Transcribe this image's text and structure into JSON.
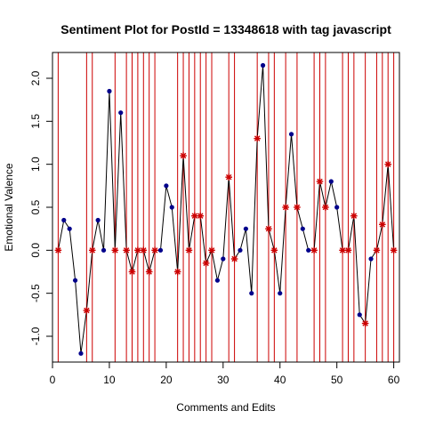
{
  "chart_data": {
    "type": "line",
    "title": "Sentiment Plot for PostId =  13348618  with tag  javascript",
    "xlabel": "Comments and Edits",
    "ylabel": "Emotional Valence",
    "xlim": [
      0,
      61
    ],
    "ylim": [
      -1.3,
      2.3
    ],
    "x_ticks": [
      0,
      10,
      20,
      30,
      40,
      50,
      60
    ],
    "x_tick_labels": [
      "0",
      "10",
      "20",
      "30",
      "40",
      "50",
      "60"
    ],
    "y_ticks": [
      -1.0,
      -0.5,
      0.0,
      0.5,
      1.0,
      1.5,
      2.0
    ],
    "y_tick_labels": [
      "-1.0",
      "-0.5",
      "0.0",
      "0.5",
      "1.0",
      "1.5",
      "2.0"
    ],
    "grid": false,
    "series": [
      {
        "x": [
          1,
          2,
          3,
          4,
          5,
          6,
          7,
          8,
          9,
          10,
          11,
          12,
          13,
          14,
          15,
          16,
          17,
          18,
          19,
          20,
          21,
          22,
          23,
          24,
          25,
          26,
          27,
          28,
          29,
          30,
          31,
          32,
          33,
          34,
          35,
          36,
          37,
          38,
          39,
          40,
          41,
          42,
          43,
          44,
          45,
          46,
          47,
          48,
          49,
          50,
          51,
          52,
          53,
          54,
          55,
          56,
          57,
          58,
          59,
          60
        ],
        "values": [
          0,
          0.35,
          0.25,
          -0.35,
          -1.2,
          -0.7,
          0,
          0.35,
          0,
          1.85,
          0,
          1.6,
          0,
          -0.25,
          0,
          0,
          -0.25,
          0,
          0,
          0.75,
          0.5,
          -0.25,
          1.1,
          0,
          0.4,
          0.4,
          -0.15,
          0,
          -0.35,
          -0.1,
          0.85,
          -0.1,
          0,
          0.25,
          -0.5,
          1.3,
          2.15,
          0.25,
          0,
          -0.5,
          0.5,
          1.35,
          0.5,
          0.25,
          0,
          0,
          0.8,
          0.5,
          0.8,
          0.5,
          0,
          0,
          0.4,
          -0.75,
          -0.85,
          -0.1,
          0,
          0.3,
          1.0,
          0
        ],
        "edit_points": [
          1,
          6,
          7,
          11,
          13,
          14,
          15,
          16,
          17,
          18,
          22,
          23,
          24,
          25,
          26,
          27,
          28,
          31,
          32,
          36,
          38,
          39,
          41,
          43,
          46,
          47,
          48,
          51,
          52,
          53,
          55,
          57,
          58,
          59,
          60
        ]
      }
    ],
    "colors": {
      "line": "#000000",
      "point": "#00008b",
      "edit_marker": "#cc0000",
      "edit_line": "#cc0000"
    }
  }
}
